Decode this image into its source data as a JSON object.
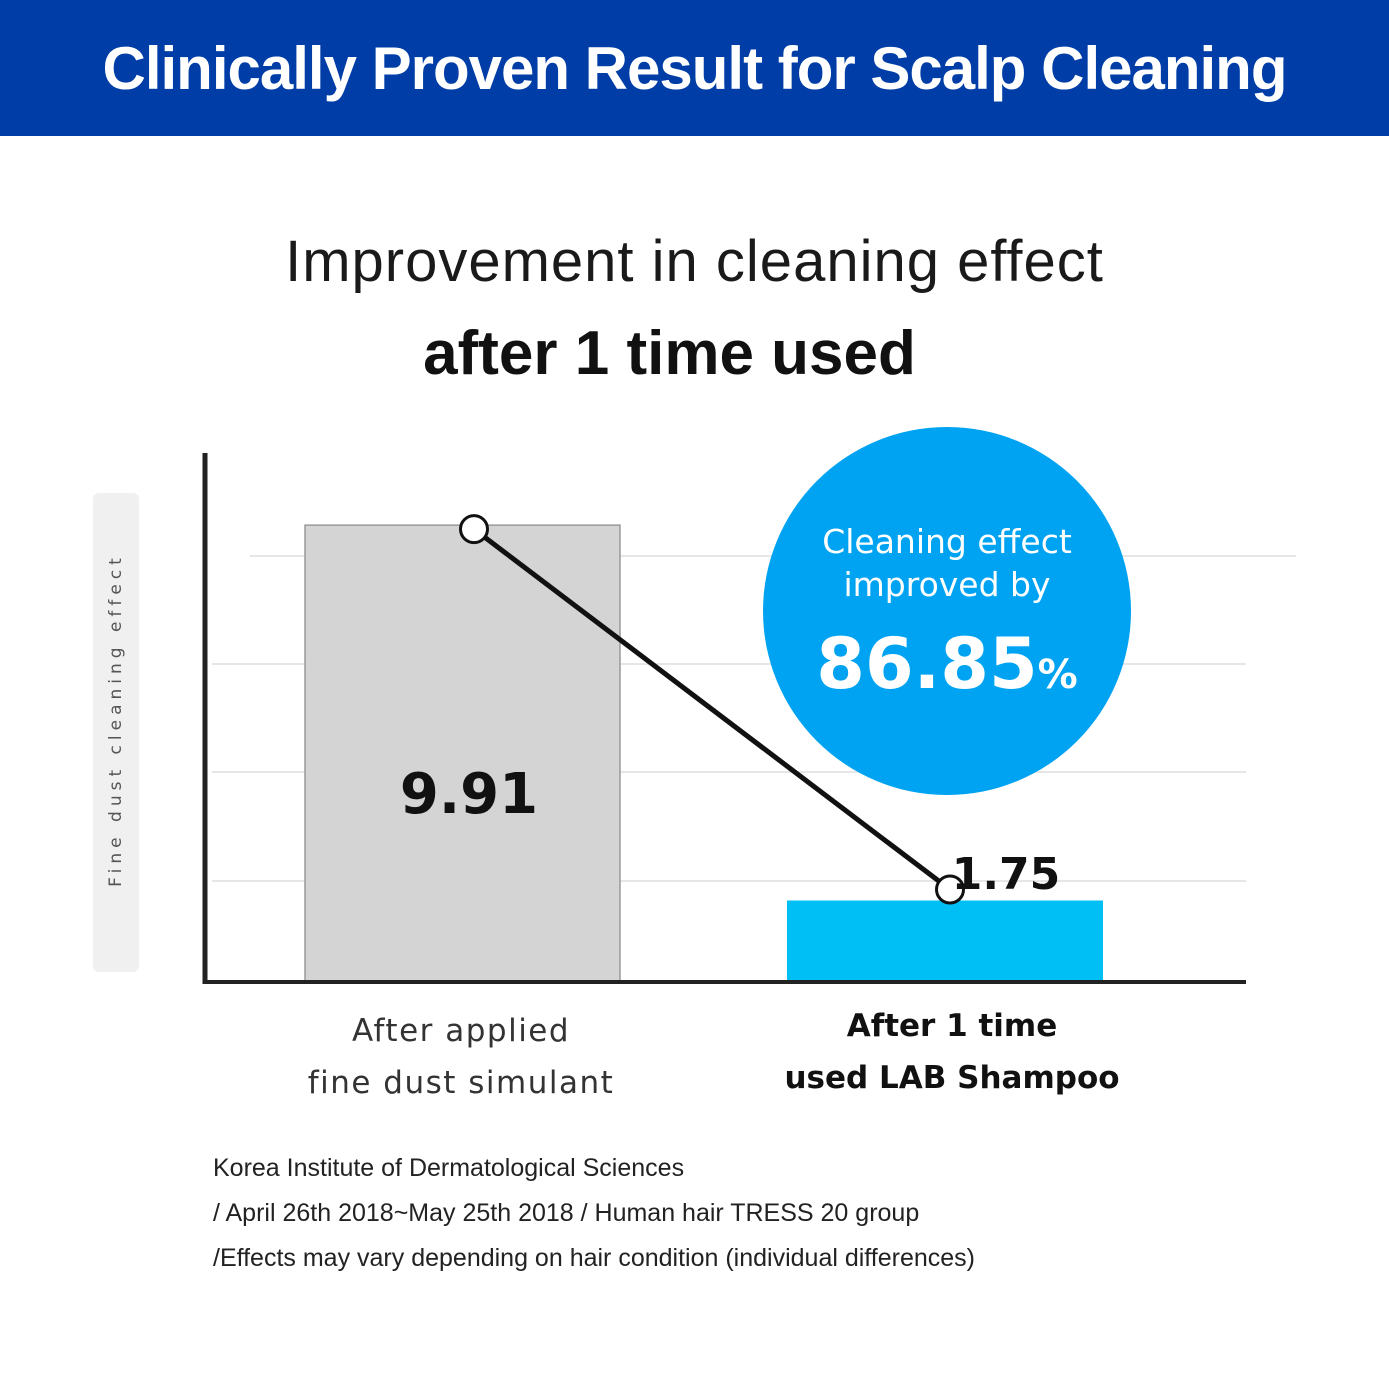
{
  "banner": {
    "title": "Clinically Proven Result for Scalp Cleaning"
  },
  "heading": {
    "line1": "Improvement in cleaning effect",
    "line2": "after 1 time used"
  },
  "callout": {
    "line1": "Cleaning effect",
    "line2": "improved by",
    "value": "86.85",
    "unit": "%",
    "color": "#00a3f2"
  },
  "chart_data": {
    "type": "bar",
    "ylabel": "Fine dust cleaning effect",
    "categories": [
      "After applied\nfine dust simulant",
      "After 1 time\nused LAB Shampoo"
    ],
    "values": [
      9.91,
      1.75
    ],
    "value_labels": [
      "9.91",
      "1.75"
    ],
    "colors": [
      "#d4d4d4",
      "#00bff5"
    ],
    "ylim": [
      0,
      11.5
    ],
    "grid": true,
    "connector_line": true
  },
  "notes": [
    "Korea Institute of Dermatological Sciences",
    "/ April 26th 2018~May 25th 2018 / Human hair TRESS 20 group",
    "/Effects may vary depending on hair condition (individual differences)"
  ],
  "colors": {
    "banner": "#003da6",
    "accent": "#00a3f2"
  }
}
